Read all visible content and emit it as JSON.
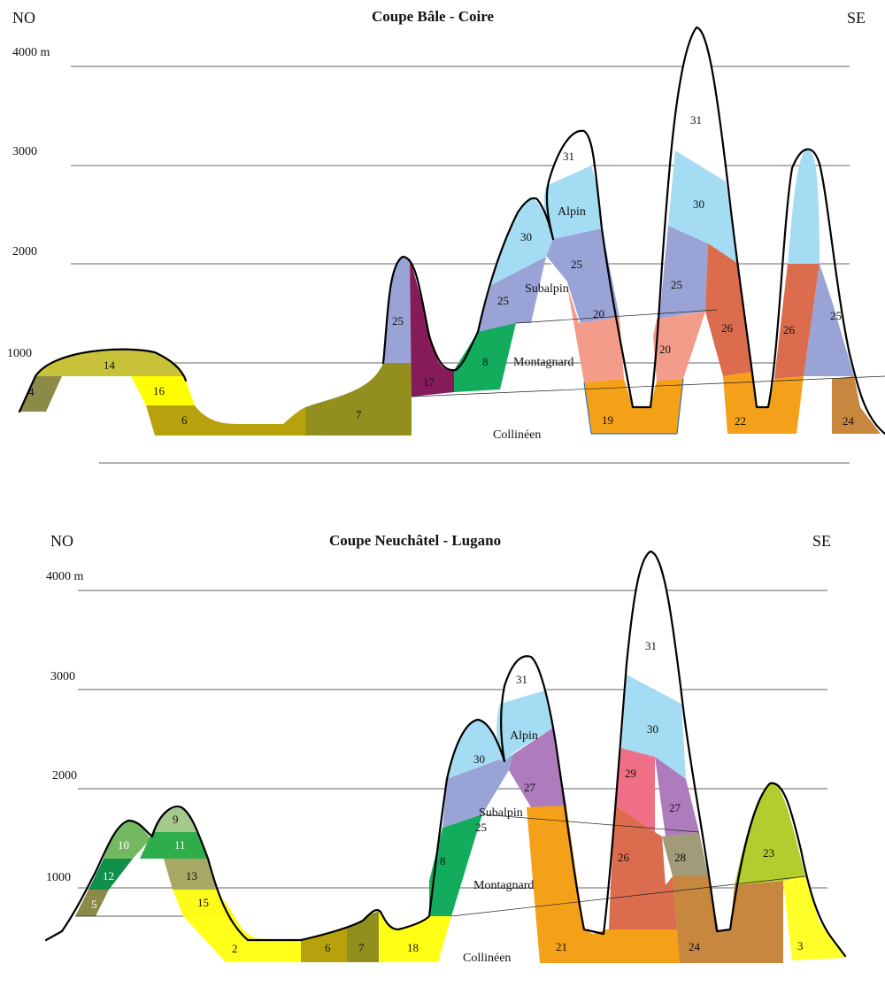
{
  "top": {
    "title": "Coupe Bâle - Coire",
    "left_dir": "NO",
    "right_dir": "SE",
    "elevations": [
      "4000 m",
      "3000",
      "2000",
      "1000"
    ],
    "belts": [
      "Alpin",
      "Subalpin",
      "Montagnard",
      "Collinéen"
    ],
    "numbers": [
      "4",
      "14",
      "16",
      "6",
      "7",
      "25",
      "17",
      "8",
      "25",
      "30",
      "31",
      "25",
      "20",
      "19",
      "30",
      "31",
      "25",
      "20",
      "26",
      "22",
      "26",
      "25",
      "24"
    ]
  },
  "bottom": {
    "title": "Coupe  Neuchâtel - Lugano",
    "left_dir": "NO",
    "right_dir": "SE",
    "elevations": [
      "4000 m",
      "3000",
      "2000",
      "1000"
    ],
    "belts": [
      "Alpin",
      "Subalpin",
      "Montagnard",
      "Collinéen"
    ],
    "numbers": [
      "10",
      "12",
      "5",
      "9",
      "11",
      "13",
      "15",
      "2",
      "6",
      "7",
      "18",
      "8",
      "25",
      "30",
      "31",
      "27",
      "21",
      "30",
      "31",
      "29",
      "26",
      "27",
      "28",
      "24",
      "23",
      "3"
    ]
  },
  "colors": {
    "c2": "#ffff19",
    "c3": "#ffff2a",
    "c4": "#8c8a48",
    "c5": "#8c8a48",
    "c6": "#b7a20e",
    "c7": "#938f1f",
    "c8": "#13ac5c",
    "c9": "#a5c98a",
    "c10": "#74b961",
    "c11": "#2fad4b",
    "c12": "#0f8f4a",
    "c13": "#a8a865",
    "c14": "#c8c23a",
    "c15": "#fffb18",
    "c16": "#ffff00",
    "c17": "#861b5a",
    "c18": "#ffff16",
    "c19": "#f4a117",
    "c20": "#f39c8a",
    "c21": "#f4a018",
    "c22": "#f5a01a",
    "c23": "#b5cc2e",
    "c24": "#c8873e",
    "c25": "#9aa3d6",
    "c26": "#db6c4e",
    "c27": "#ae7bbd",
    "c28": "#a19b79",
    "c29": "#ef6f86",
    "c30": "#a4dcf3",
    "c31": "#ffffff"
  }
}
